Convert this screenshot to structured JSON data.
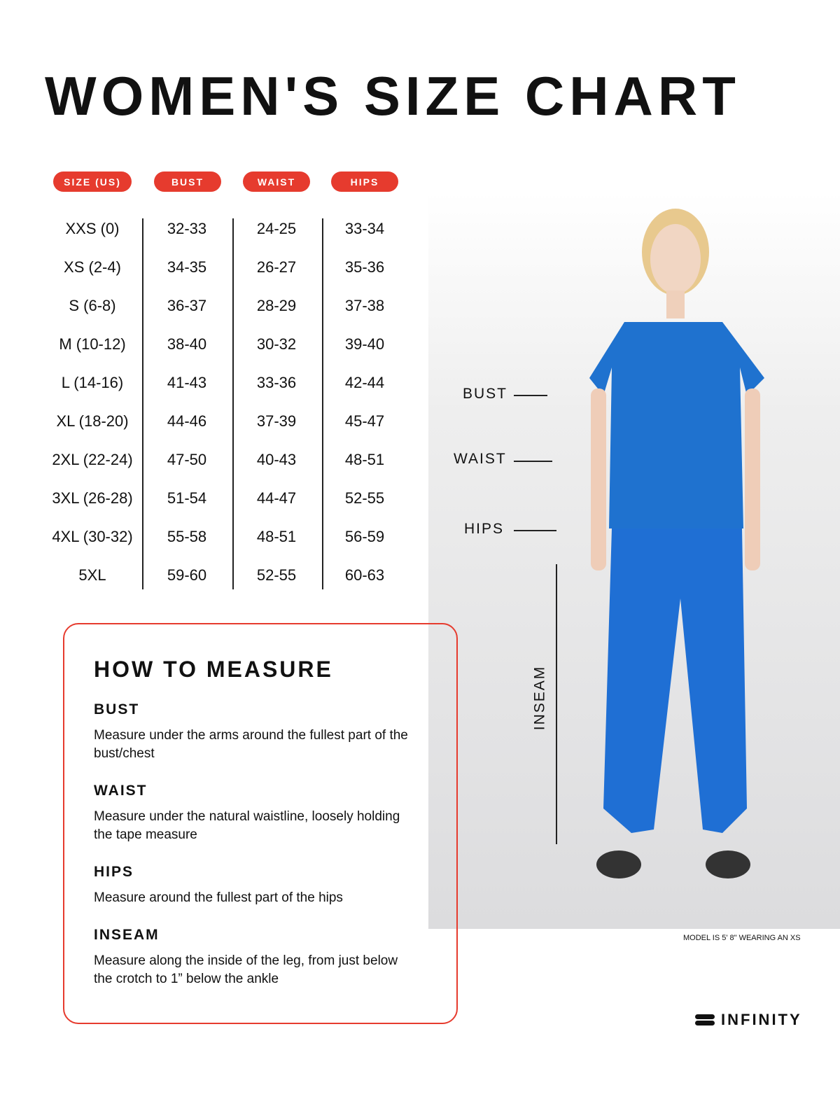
{
  "title": "WOMEN'S SIZE CHART",
  "accent_color": "#e63b2e",
  "table": {
    "headers": [
      "SIZE (US)",
      "BUST",
      "WAIST",
      "HIPS"
    ],
    "sizes": [
      "XXS (0)",
      "XS (2-4)",
      "S (6-8)",
      "M (10-12)",
      "L (14-16)",
      "XL (18-20)",
      "2XL (22-24)",
      "3XL (26-28)",
      "4XL (30-32)",
      "5XL"
    ],
    "bust": [
      "32-33",
      "34-35",
      "36-37",
      "38-40",
      "41-43",
      "44-46",
      "47-50",
      "51-54",
      "55-58",
      "59-60"
    ],
    "waist": [
      "24-25",
      "26-27",
      "28-29",
      "30-32",
      "33-36",
      "37-39",
      "40-43",
      "44-47",
      "48-51",
      "52-55"
    ],
    "hips": [
      "33-34",
      "35-36",
      "37-38",
      "39-40",
      "42-44",
      "45-47",
      "48-51",
      "52-55",
      "56-59",
      "60-63"
    ]
  },
  "figure": {
    "bust": "BUST",
    "waist": "WAIST",
    "hips": "HIPS",
    "inseam": "INSEAM",
    "note": "MODEL IS 5' 8\" WEARING AN XS"
  },
  "measure": {
    "title": "HOW TO MEASURE",
    "sections": [
      {
        "heading": "BUST",
        "text": "Measure under the arms around the fullest part of the bust/chest"
      },
      {
        "heading": "WAIST",
        "text": "Measure under the natural waistline, loosely holding the tape measure"
      },
      {
        "heading": "HIPS",
        "text": "Measure around the fullest part of the hips"
      },
      {
        "heading": "INSEAM",
        "text": "Measure along the inside of the leg, from just below the crotch to 1” below the ankle"
      }
    ]
  },
  "brand": "INFINITY"
}
